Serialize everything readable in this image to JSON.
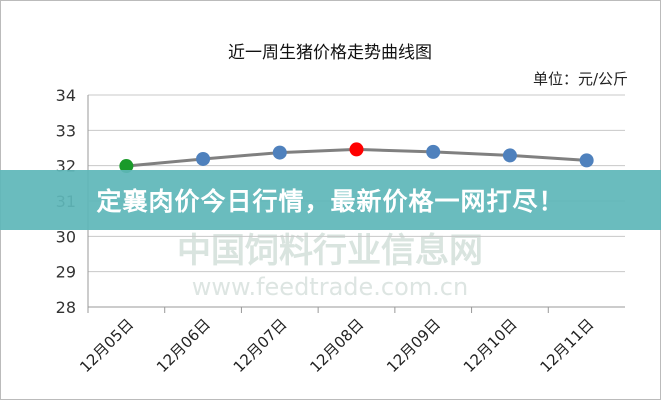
{
  "chart_data": {
    "type": "line",
    "title": "近一周生猪价格走势曲线图",
    "unit_label": "单位：元/公斤",
    "categories": [
      "12月05日",
      "12月06日",
      "12月07日",
      "12月08日",
      "12月09日",
      "12月10日",
      "12月11日"
    ],
    "values": [
      31.99,
      32.19,
      32.37,
      32.46,
      32.39,
      32.29,
      32.15
    ],
    "marker_colors": [
      "#1a9a2a",
      "#4f81bd",
      "#4f81bd",
      "#ff0000",
      "#4f81bd",
      "#4f81bd",
      "#4f81bd"
    ],
    "line_color": "#808080",
    "ylim": [
      28,
      34
    ],
    "yticks": [
      28,
      29,
      30,
      31,
      32,
      33,
      34
    ],
    "grid": true,
    "legend": "none"
  },
  "watermark": {
    "cn": "中国饲料行业信息网",
    "url": "www.feedtrade.com.cn"
  },
  "banner": {
    "text": "定襄肉价今日行情，最新价格一网打尽！"
  }
}
